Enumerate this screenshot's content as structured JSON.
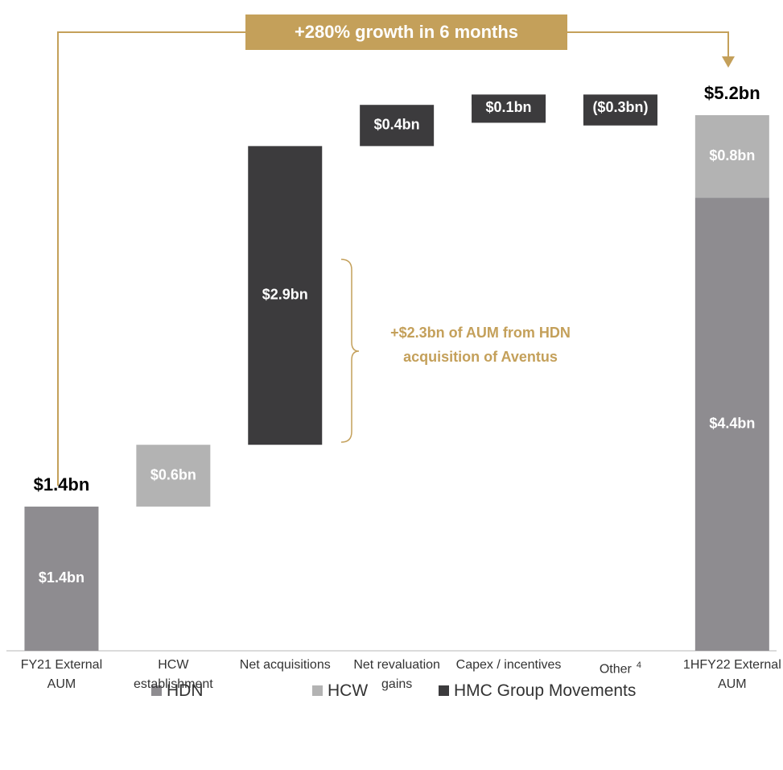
{
  "chart_data": {
    "type": "waterfall",
    "banner": "+280% growth in 6 months",
    "note": "+$2.3bn of AUM from HDN acquisition of Aventus",
    "categories": [
      "FY21 External AUM",
      "HCW establishment",
      "Net acquisitions",
      "Net revaluation gains",
      "Capex / incentives",
      "Other",
      "1HFY22 External AUM"
    ],
    "category_notes": [
      null,
      null,
      null,
      null,
      null,
      "4",
      null
    ],
    "series": [
      {
        "name": "HDN",
        "color": "#8e8c90",
        "values": [
          1.4,
          null,
          null,
          null,
          null,
          null,
          4.4
        ],
        "value_labels": [
          "$1.4bn",
          null,
          null,
          null,
          null,
          null,
          "$4.4bn"
        ]
      },
      {
        "name": "HCW",
        "color": "#b3b3b3",
        "values": [
          null,
          0.6,
          null,
          null,
          null,
          null,
          0.8
        ],
        "value_labels": [
          null,
          "$0.6bn",
          null,
          null,
          null,
          null,
          "$0.8bn"
        ]
      },
      {
        "name": "HMC Group Movements",
        "color": "#3c3b3d",
        "values": [
          null,
          null,
          2.9,
          0.4,
          0.1,
          -0.3,
          null
        ],
        "value_labels": [
          null,
          null,
          "$2.9bn",
          "$0.4bn",
          "$0.1bn",
          "($0.3bn)",
          null
        ]
      }
    ],
    "totals": {
      "values": [
        1.4,
        null,
        null,
        null,
        null,
        null,
        5.2
      ],
      "value_labels": [
        "$1.4bn",
        null,
        null,
        null,
        null,
        null,
        "$5.2bn"
      ]
    }
  }
}
